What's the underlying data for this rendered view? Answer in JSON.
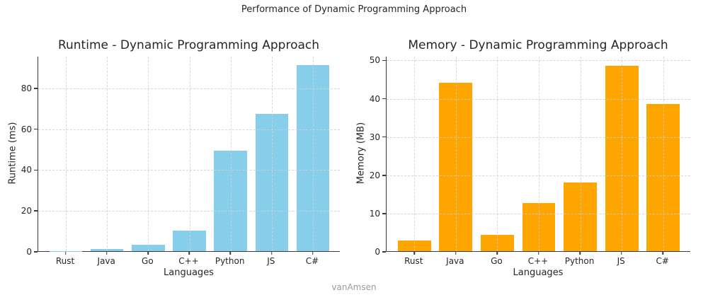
{
  "figure_title": "Performance of Dynamic Programming Approach",
  "watermark": "vanAmsen",
  "colors": {
    "runtime_bar": "#87CEEB",
    "memory_bar": "#FFA500",
    "axis_text": "#262626",
    "gridline": "#d0d0d0",
    "watermark_text": "#9a9a9a"
  },
  "chart_data": [
    {
      "type": "bar",
      "title": "Runtime - Dynamic Programming Approach",
      "xlabel": "Languages",
      "ylabel": "Runtime (ms)",
      "categories": [
        "Rust",
        "Java",
        "Go",
        "C++",
        "Python",
        "JS",
        "C#"
      ],
      "values": [
        0.1,
        1,
        3,
        10,
        49,
        67,
        91
      ],
      "yticks": [
        0,
        20,
        40,
        60,
        80
      ],
      "ylim": [
        0,
        95.5
      ],
      "bar_color": "#87CEEB",
      "grid": true,
      "grid_style": "dashed",
      "legend": "none"
    },
    {
      "type": "bar",
      "title": "Memory - Dynamic Programming Approach",
      "xlabel": "Languages",
      "ylabel": "Memory (MB)",
      "categories": [
        "Rust",
        "Java",
        "Go",
        "C++",
        "Python",
        "JS",
        "C#"
      ],
      "values": [
        2.7,
        44,
        4.2,
        12.5,
        18,
        48.4,
        38.5
      ],
      "yticks": [
        0,
        10,
        20,
        30,
        40,
        50
      ],
      "ylim": [
        0,
        51
      ],
      "bar_color": "#FFA500",
      "grid": true,
      "grid_style": "dashed",
      "legend": "none"
    }
  ]
}
